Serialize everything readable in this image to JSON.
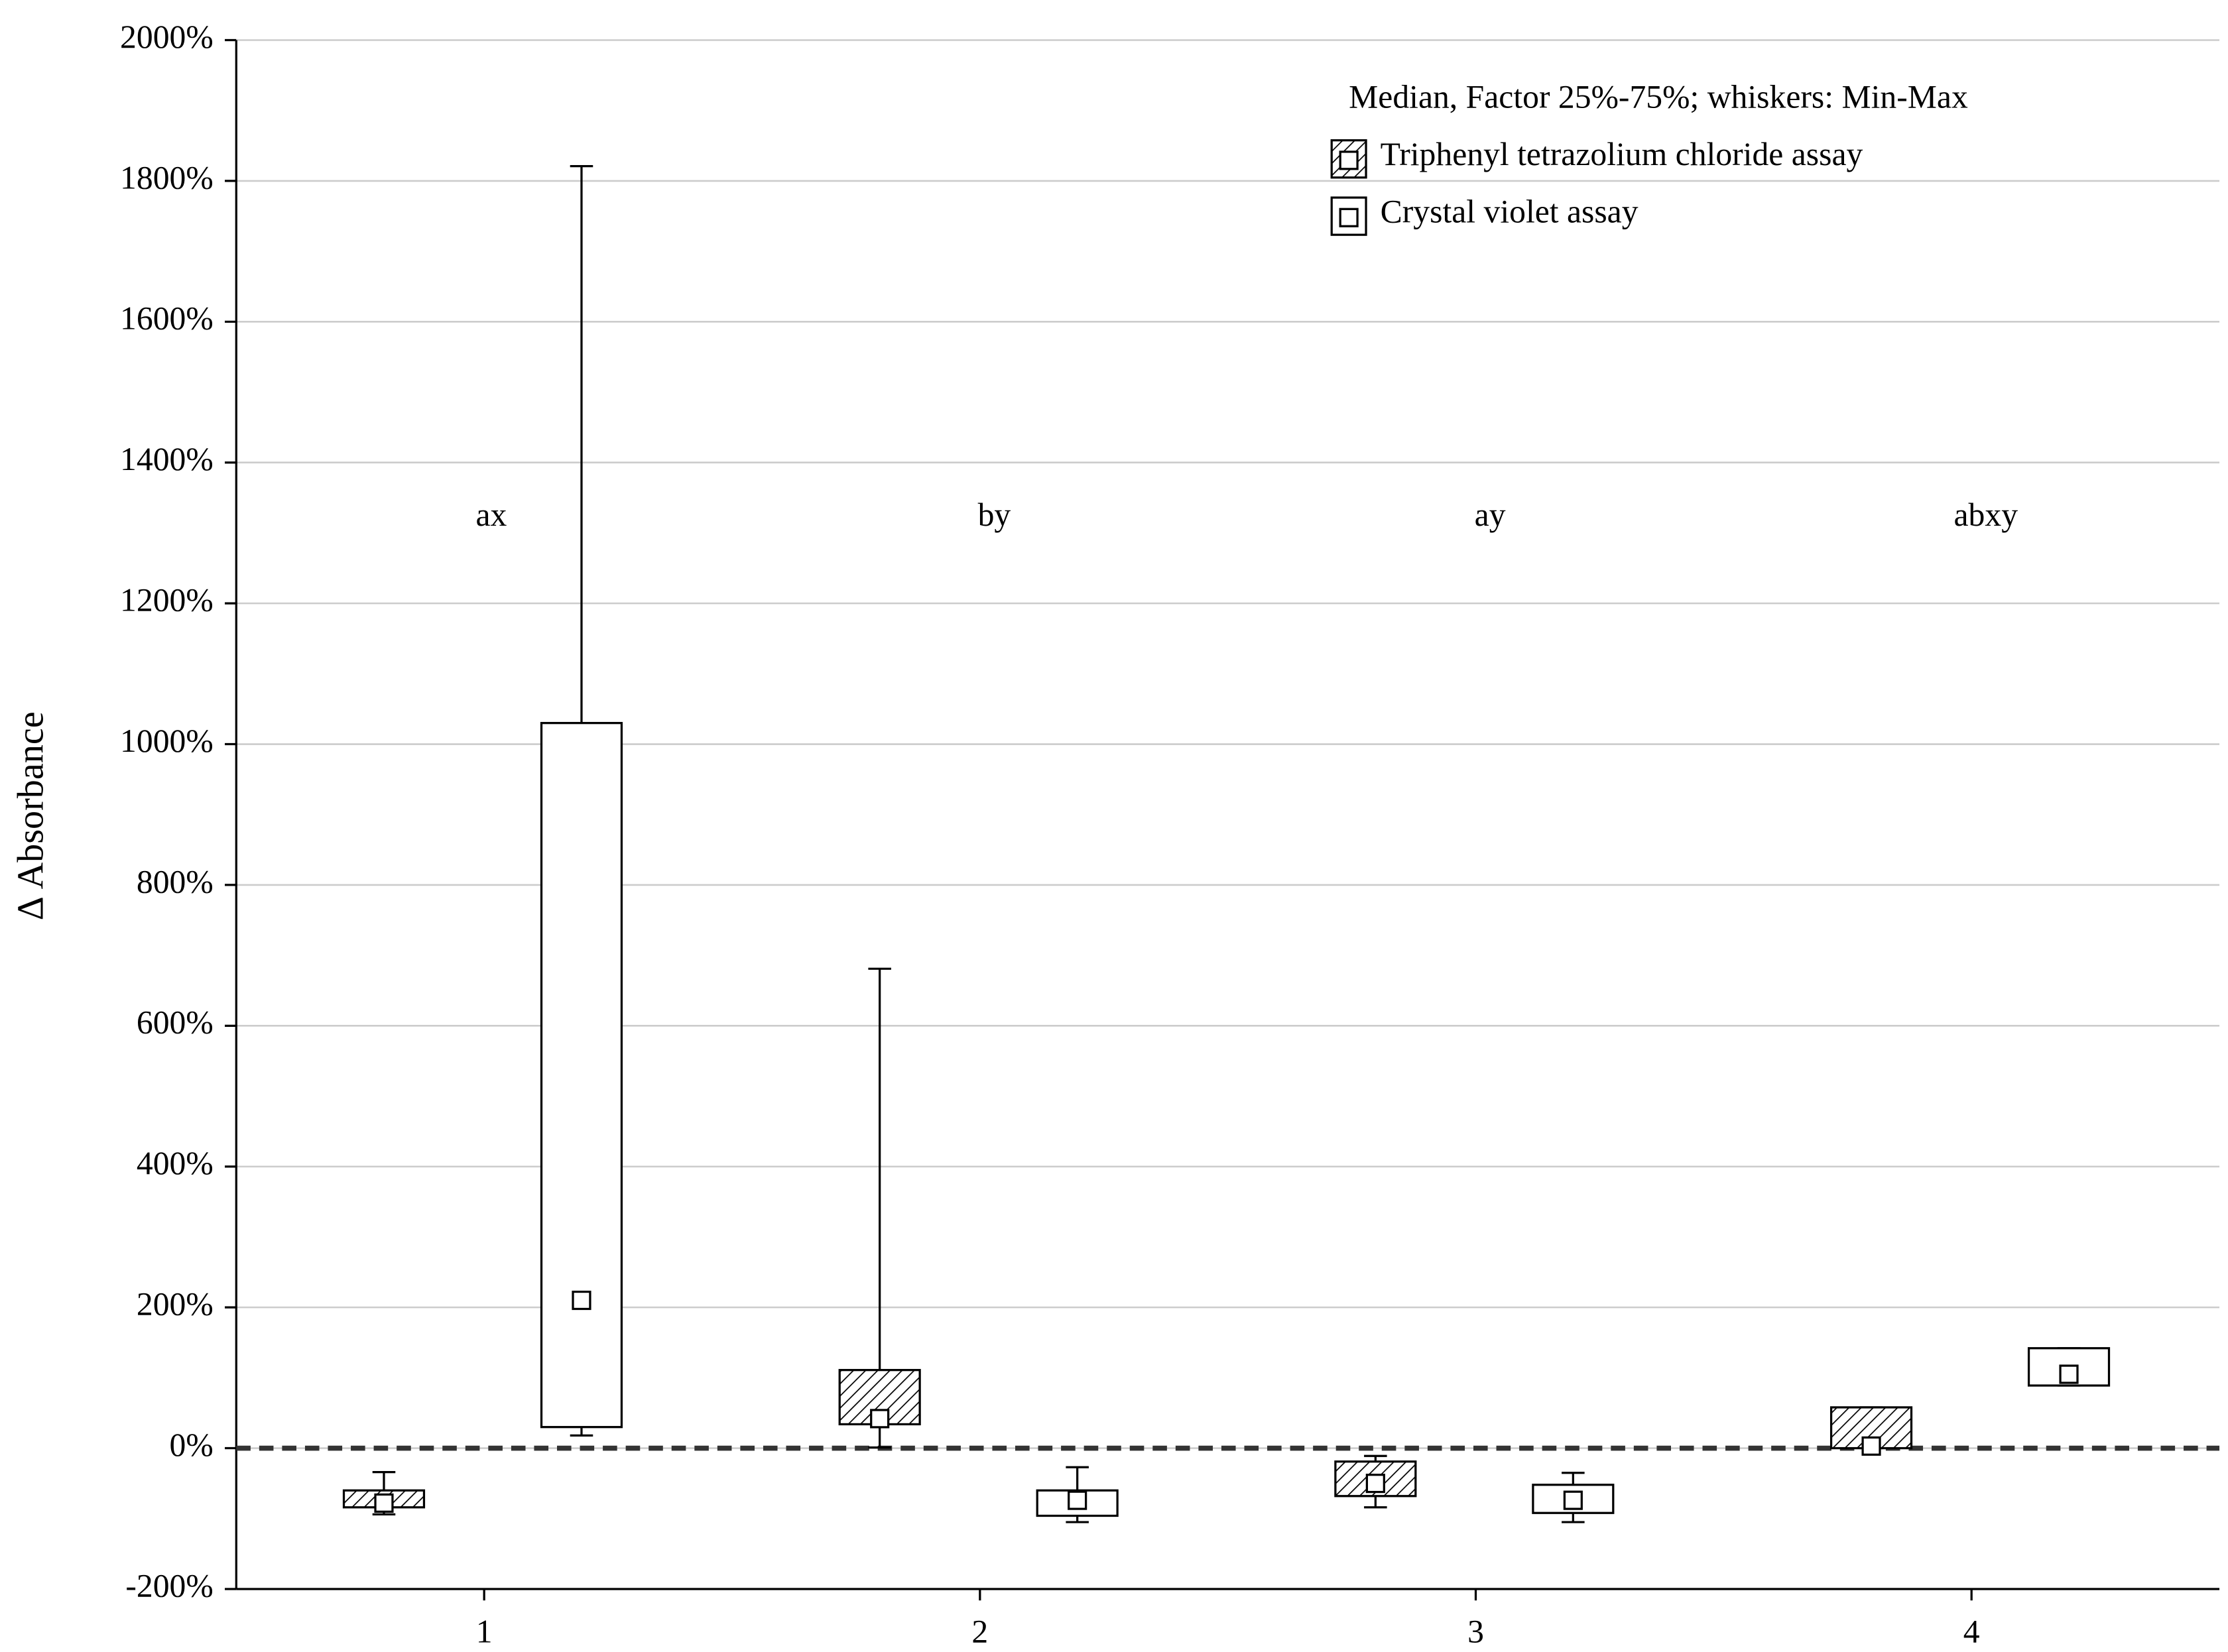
{
  "chart_data": {
    "type": "box",
    "y_label": "Δ Absorbance",
    "legend_title": "Median, Factor 25%-75%; whiskers: Min-Max",
    "legend": "upper right",
    "categories": [
      "1",
      "2",
      "3",
      "4"
    ],
    "group_labels": [
      "ax",
      "by",
      "ay",
      "abxy"
    ],
    "reference_line": 0,
    "grid": true,
    "ylim": [
      -200,
      2000
    ],
    "yticks": [
      {
        "value": -200,
        "label": "-200%"
      },
      {
        "value": 0,
        "label": "0%"
      },
      {
        "value": 200,
        "label": "200%"
      },
      {
        "value": 400,
        "label": "400%"
      },
      {
        "value": 600,
        "label": "600%"
      },
      {
        "value": 800,
        "label": "800%"
      },
      {
        "value": 1000,
        "label": "1000%"
      },
      {
        "value": 1200,
        "label": "1200%"
      },
      {
        "value": 1400,
        "label": "1400%"
      },
      {
        "value": 1600,
        "label": "1600%"
      },
      {
        "value": 1800,
        "label": "1800%"
      },
      {
        "value": 2000,
        "label": "2000%"
      }
    ],
    "series": [
      {
        "name": "Triphenyl tetrazolium chloride assay",
        "color": "#000000",
        "hatch": true,
        "values": [
          {
            "min": -94,
            "q1": -84,
            "median": -78,
            "q3": -60,
            "max": -34
          },
          {
            "min": 1,
            "q1": 34,
            "median": 42,
            "q3": 111,
            "max": 681
          },
          {
            "min": -84,
            "q1": -68,
            "median": -50,
            "q3": -19,
            "max": -11
          },
          {
            "min": 0,
            "q1": 0,
            "median": 3,
            "q3": 58,
            "max": 58
          }
        ]
      },
      {
        "name": "Crystal violet assay",
        "color": "#000000",
        "hatch": false,
        "values": [
          {
            "min": 18,
            "q1": 30,
            "median": 210,
            "q3": 1030,
            "max": 1821
          },
          {
            "min": -105,
            "q1": -96,
            "median": -74,
            "q3": -60,
            "max": -27
          },
          {
            "min": -105,
            "q1": -92,
            "median": -74,
            "q3": -52,
            "max": -35
          },
          {
            "min": 89,
            "q1": 89,
            "median": 105,
            "q3": 142,
            "max": 142
          }
        ]
      }
    ]
  }
}
